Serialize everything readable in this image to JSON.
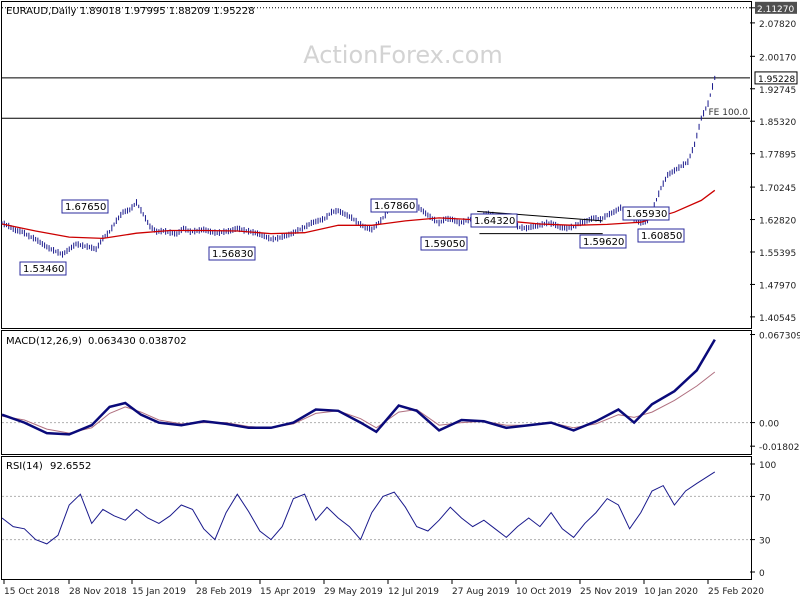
{
  "header": {
    "symbol_line": "EURAUD,Daily  1.89018 1.97995 1.88209 1.95228",
    "watermark": "ActionForex.com"
  },
  "colors": {
    "price": "#1a1a8c",
    "ma": "#cc0000",
    "macd_line": "#0a0a7a",
    "signal_line": "#b07080",
    "rsi": "#1a1a8c",
    "label_border": "#2b2b9c",
    "axis_text": "#222222",
    "grid": "#b0b0b0"
  },
  "chart_data": [
    {
      "type": "line",
      "title": "EURAUD,Daily",
      "ohlc_last": {
        "open": 1.89018,
        "high": 1.97995,
        "low": 1.88209,
        "close": 1.95228
      },
      "ylim": [
        1.38,
        2.126
      ],
      "yticks": [
        "2.11270",
        "2.07820",
        "2.00170",
        "1.92745",
        "1.85320",
        "1.77895",
        "1.70245",
        "1.62820",
        "1.55395",
        "1.47970",
        "1.40545"
      ],
      "ytick_values": [
        2.1127,
        2.0782,
        2.0017,
        1.92745,
        1.8532,
        1.77895,
        1.70245,
        1.6282,
        1.55395,
        1.4797,
        1.40545
      ],
      "current_price_label": "1.95228",
      "highlight_tick": "2.11270",
      "hlines": [
        {
          "value": 2.1127,
          "style": "dotted"
        },
        {
          "value": 1.9523,
          "style": "solid"
        },
        {
          "value": 1.86,
          "style": "solid",
          "label": "FE 100.0"
        }
      ],
      "price_series": [
        [
          0,
          1.62
        ],
        [
          3,
          1.613
        ],
        [
          6,
          1.603
        ],
        [
          9,
          1.6
        ],
        [
          12,
          1.59
        ],
        [
          15,
          1.583
        ],
        [
          18,
          1.572
        ],
        [
          21,
          1.562
        ],
        [
          24,
          1.555
        ],
        [
          27,
          1.548
        ],
        [
          30,
          1.56
        ],
        [
          33,
          1.572
        ],
        [
          36,
          1.568
        ],
        [
          39,
          1.565
        ],
        [
          42,
          1.56
        ],
        [
          45,
          1.585
        ],
        [
          48,
          1.6
        ],
        [
          51,
          1.625
        ],
        [
          54,
          1.645
        ],
        [
          57,
          1.65
        ],
        [
          60,
          1.667
        ],
        [
          63,
          1.64
        ],
        [
          66,
          1.612
        ],
        [
          69,
          1.6
        ],
        [
          72,
          1.602
        ],
        [
          75,
          1.598
        ],
        [
          78,
          1.595
        ],
        [
          81,
          1.608
        ],
        [
          84,
          1.6
        ],
        [
          87,
          1.602
        ],
        [
          90,
          1.605
        ],
        [
          93,
          1.6
        ],
        [
          96,
          1.597
        ],
        [
          99,
          1.6
        ],
        [
          102,
          1.602
        ],
        [
          105,
          1.608
        ],
        [
          108,
          1.603
        ],
        [
          111,
          1.6
        ],
        [
          114,
          1.596
        ],
        [
          117,
          1.59
        ],
        [
          120,
          1.583
        ],
        [
          123,
          1.585
        ],
        [
          126,
          1.59
        ],
        [
          129,
          1.595
        ],
        [
          132,
          1.603
        ],
        [
          135,
          1.61
        ],
        [
          138,
          1.62
        ],
        [
          141,
          1.625
        ],
        [
          144,
          1.63
        ],
        [
          147,
          1.645
        ],
        [
          150,
          1.648
        ],
        [
          153,
          1.64
        ],
        [
          156,
          1.632
        ],
        [
          159,
          1.62
        ],
        [
          162,
          1.61
        ],
        [
          165,
          1.605
        ],
        [
          168,
          1.62
        ],
        [
          171,
          1.638
        ],
        [
          174,
          1.662
        ],
        [
          177,
          1.665
        ],
        [
          180,
          1.66
        ],
        [
          183,
          1.65
        ],
        [
          186,
          1.655
        ],
        [
          189,
          1.642
        ],
        [
          192,
          1.63
        ],
        [
          195,
          1.62
        ],
        [
          198,
          1.63
        ],
        [
          201,
          1.628
        ],
        [
          204,
          1.62
        ],
        [
          207,
          1.625
        ],
        [
          210,
          1.63
        ],
        [
          213,
          1.632
        ],
        [
          216,
          1.642
        ],
        [
          219,
          1.638
        ],
        [
          222,
          1.63
        ],
        [
          225,
          1.62
        ],
        [
          228,
          1.618
        ],
        [
          231,
          1.61
        ],
        [
          234,
          1.608
        ],
        [
          237,
          1.612
        ],
        [
          240,
          1.615
        ],
        [
          243,
          1.62
        ],
        [
          246,
          1.618
        ],
        [
          249,
          1.61
        ],
        [
          252,
          1.608
        ],
        [
          255,
          1.612
        ],
        [
          258,
          1.62
        ],
        [
          261,
          1.625
        ],
        [
          264,
          1.632
        ],
        [
          267,
          1.628
        ],
        [
          270,
          1.638
        ],
        [
          273,
          1.645
        ],
        [
          276,
          1.655
        ],
        [
          279,
          1.645
        ],
        [
          282,
          1.63
        ],
        [
          285,
          1.62
        ],
        [
          288,
          1.625
        ],
        [
          291,
          1.66
        ],
        [
          294,
          1.7
        ],
        [
          297,
          1.73
        ],
        [
          300,
          1.74
        ],
        [
          303,
          1.75
        ],
        [
          306,
          1.76
        ],
        [
          309,
          1.8
        ],
        [
          312,
          1.86
        ],
        [
          315,
          1.893
        ],
        [
          318,
          1.952
        ]
      ],
      "ma_series": [
        [
          0,
          1.618
        ],
        [
          15,
          1.602
        ],
        [
          30,
          1.588
        ],
        [
          45,
          1.585
        ],
        [
          60,
          1.597
        ],
        [
          75,
          1.603
        ],
        [
          90,
          1.603
        ],
        [
          105,
          1.602
        ],
        [
          120,
          1.596
        ],
        [
          135,
          1.598
        ],
        [
          150,
          1.615
        ],
        [
          165,
          1.615
        ],
        [
          180,
          1.625
        ],
        [
          195,
          1.632
        ],
        [
          210,
          1.628
        ],
        [
          225,
          1.625
        ],
        [
          240,
          1.618
        ],
        [
          255,
          1.615
        ],
        [
          270,
          1.617
        ],
        [
          285,
          1.622
        ],
        [
          300,
          1.645
        ],
        [
          312,
          1.672
        ],
        [
          318,
          1.695
        ]
      ],
      "price_labels": [
        "1.67650",
        "1.53460",
        "1.56830",
        "1.67860",
        "1.59050",
        "1.64320",
        "1.59620",
        "1.60850",
        "1.65930"
      ],
      "trendlines": [
        {
          "from": [
            212,
            1.647
          ],
          "to": [
            268,
            1.625
          ]
        },
        {
          "from": [
            213,
            1.596
          ],
          "to": [
            268,
            1.596
          ]
        }
      ]
    },
    {
      "type": "line",
      "title": "MACD(12,26,9)",
      "header_values": "0.063430 0.038702",
      "ylim": [
        -0.024,
        0.07
      ],
      "ytick_labels": [
        "0.067309",
        "0.00",
        "-0.018023"
      ],
      "ytick_values": [
        0.067309,
        0.0,
        -0.018023
      ],
      "zero_label_value": "0.00",
      "series": [
        {
          "name": "MACD",
          "points": [
            [
              0,
              0.006
            ],
            [
              10,
              0.0
            ],
            [
              20,
              -0.008
            ],
            [
              30,
              -0.009
            ],
            [
              40,
              -0.002
            ],
            [
              48,
              0.012
            ],
            [
              55,
              0.015
            ],
            [
              62,
              0.006
            ],
            [
              70,
              0.0
            ],
            [
              80,
              -0.002
            ],
            [
              90,
              0.001
            ],
            [
              100,
              -0.001
            ],
            [
              110,
              -0.004
            ],
            [
              120,
              -0.004
            ],
            [
              130,
              0.0
            ],
            [
              140,
              0.01
            ],
            [
              150,
              0.009
            ],
            [
              160,
              0.0
            ],
            [
              167,
              -0.007
            ],
            [
              177,
              0.013
            ],
            [
              185,
              0.009
            ],
            [
              195,
              -0.006
            ],
            [
              205,
              0.002
            ],
            [
              215,
              0.001
            ],
            [
              225,
              -0.004
            ],
            [
              235,
              -0.002
            ],
            [
              245,
              0.0
            ],
            [
              255,
              -0.006
            ],
            [
              265,
              0.001
            ],
            [
              275,
              0.01
            ],
            [
              282,
              0.0
            ],
            [
              290,
              0.014
            ],
            [
              300,
              0.024
            ],
            [
              310,
              0.04
            ],
            [
              318,
              0.0634
            ]
          ]
        },
        {
          "name": "Signal",
          "points": [
            [
              0,
              0.005
            ],
            [
              10,
              0.002
            ],
            [
              20,
              -0.005
            ],
            [
              30,
              -0.008
            ],
            [
              40,
              -0.004
            ],
            [
              48,
              0.007
            ],
            [
              55,
              0.012
            ],
            [
              62,
              0.008
            ],
            [
              70,
              0.002
            ],
            [
              80,
              -0.001
            ],
            [
              90,
              0.0
            ],
            [
              100,
              0.0
            ],
            [
              110,
              -0.003
            ],
            [
              120,
              -0.004
            ],
            [
              130,
              -0.001
            ],
            [
              140,
              0.007
            ],
            [
              150,
              0.009
            ],
            [
              160,
              0.003
            ],
            [
              167,
              -0.004
            ],
            [
              177,
              0.008
            ],
            [
              185,
              0.01
            ],
            [
              195,
              -0.002
            ],
            [
              205,
              0.0
            ],
            [
              215,
              0.001
            ],
            [
              225,
              -0.002
            ],
            [
              235,
              -0.002
            ],
            [
              245,
              0.0
            ],
            [
              255,
              -0.004
            ],
            [
              265,
              -0.001
            ],
            [
              275,
              0.006
            ],
            [
              282,
              0.004
            ],
            [
              290,
              0.008
            ],
            [
              300,
              0.017
            ],
            [
              310,
              0.028
            ],
            [
              318,
              0.0387
            ]
          ]
        }
      ]
    },
    {
      "type": "line",
      "title": "RSI(14)",
      "header_values": "92.6552",
      "ylim": [
        0,
        100
      ],
      "ytick_labels": [
        "100",
        "70",
        "30",
        "0"
      ],
      "ytick_values": [
        100,
        70,
        30,
        0
      ],
      "levels": [
        70,
        30
      ],
      "points": [
        [
          0,
          50
        ],
        [
          5,
          42
        ],
        [
          10,
          40
        ],
        [
          15,
          30
        ],
        [
          20,
          26
        ],
        [
          25,
          34
        ],
        [
          30,
          62
        ],
        [
          35,
          72
        ],
        [
          40,
          45
        ],
        [
          45,
          58
        ],
        [
          50,
          52
        ],
        [
          55,
          48
        ],
        [
          60,
          58
        ],
        [
          65,
          50
        ],
        [
          70,
          45
        ],
        [
          75,
          52
        ],
        [
          80,
          62
        ],
        [
          85,
          58
        ],
        [
          90,
          40
        ],
        [
          95,
          30
        ],
        [
          100,
          55
        ],
        [
          105,
          72
        ],
        [
          110,
          56
        ],
        [
          115,
          38
        ],
        [
          120,
          30
        ],
        [
          125,
          42
        ],
        [
          130,
          68
        ],
        [
          135,
          72
        ],
        [
          140,
          48
        ],
        [
          145,
          60
        ],
        [
          150,
          50
        ],
        [
          155,
          42
        ],
        [
          160,
          30
        ],
        [
          165,
          55
        ],
        [
          170,
          70
        ],
        [
          175,
          74
        ],
        [
          180,
          60
        ],
        [
          185,
          42
        ],
        [
          190,
          38
        ],
        [
          195,
          48
        ],
        [
          200,
          60
        ],
        [
          205,
          50
        ],
        [
          210,
          42
        ],
        [
          215,
          48
        ],
        [
          220,
          40
        ],
        [
          225,
          32
        ],
        [
          230,
          42
        ],
        [
          235,
          50
        ],
        [
          240,
          42
        ],
        [
          245,
          55
        ],
        [
          250,
          40
        ],
        [
          255,
          32
        ],
        [
          260,
          45
        ],
        [
          265,
          55
        ],
        [
          270,
          68
        ],
        [
          275,
          62
        ],
        [
          280,
          40
        ],
        [
          285,
          55
        ],
        [
          290,
          75
        ],
        [
          295,
          80
        ],
        [
          300,
          62
        ],
        [
          305,
          75
        ],
        [
          310,
          82
        ],
        [
          318,
          92.7
        ]
      ]
    }
  ],
  "x_axis": {
    "labels": [
      "15 Oct 2018",
      "28 Nov 2018",
      "15 Jan 2019",
      "28 Feb 2019",
      "15 Apr 2019",
      "29 May 2019",
      "12 Jul 2019",
      "27 Aug 2019",
      "10 Oct 2019",
      "25 Nov 2019",
      "10 Jan 2020",
      "25 Feb 2020"
    ],
    "label_index": [
      0,
      31,
      64,
      94,
      126,
      157,
      188,
      220,
      252,
      283,
      315,
      346
    ],
    "n_bars": 330
  }
}
